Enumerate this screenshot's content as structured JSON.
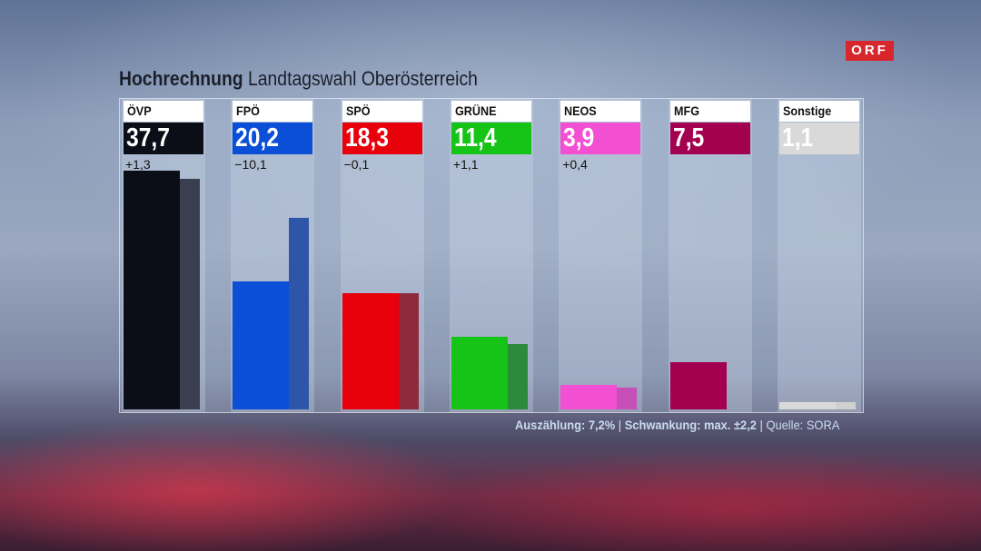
{
  "brand": {
    "logo_text": "ORF",
    "logo_color": "#d8262d"
  },
  "header": {
    "title_bold": "Hochrechnung",
    "title_rest": "Landtagswahl Oberösterreich"
  },
  "chart_data": {
    "type": "bar",
    "title": "Hochrechnung Landtagswahl Oberösterreich",
    "categories": [
      "ÖVP",
      "FPÖ",
      "SPÖ",
      "GRÜNE",
      "NEOS",
      "MFG",
      "Sonstige"
    ],
    "series": [
      {
        "values": [
          37.7,
          20.2,
          18.3,
          11.4,
          3.9,
          7.5,
          1.1
        ]
      },
      {
        "values": [
          36.4,
          30.3,
          18.4,
          10.3,
          3.5,
          0,
          1.1
        ]
      }
    ],
    "display_values": [
      "37,7",
      "20,2",
      "18,3",
      "11,4",
      "3,9",
      "7,5",
      "1,1"
    ],
    "differences": [
      "+1,3",
      "−10,1",
      "−0,1",
      "+1,1",
      "+0,4",
      "",
      ""
    ],
    "colors": [
      "#0b0e17",
      "#0a4fd6",
      "#e8000b",
      "#16c418",
      "#f24fd2",
      "#a3004f",
      "#d9d9d9"
    ],
    "previous_colors": [
      "#3a3f4f",
      "#2d56a8",
      "#8e2a3c",
      "#2d8a3d",
      "#c64fb8",
      "#7a2950",
      "#d0d0d0"
    ],
    "value_text_colors": [
      "#ffffff",
      "#ffffff",
      "#ffffff",
      "#ffffff",
      "#ffffff",
      "#ffffff",
      "#ffffff"
    ],
    "ylim": [
      0,
      43
    ],
    "grid": false,
    "legend": "none"
  },
  "footer": {
    "count_label": "Auszählung: 7,2%",
    "separator": " | ",
    "margin_label": "Schwankung: max. ±2,2",
    "source_label": "Quelle: SORA"
  }
}
